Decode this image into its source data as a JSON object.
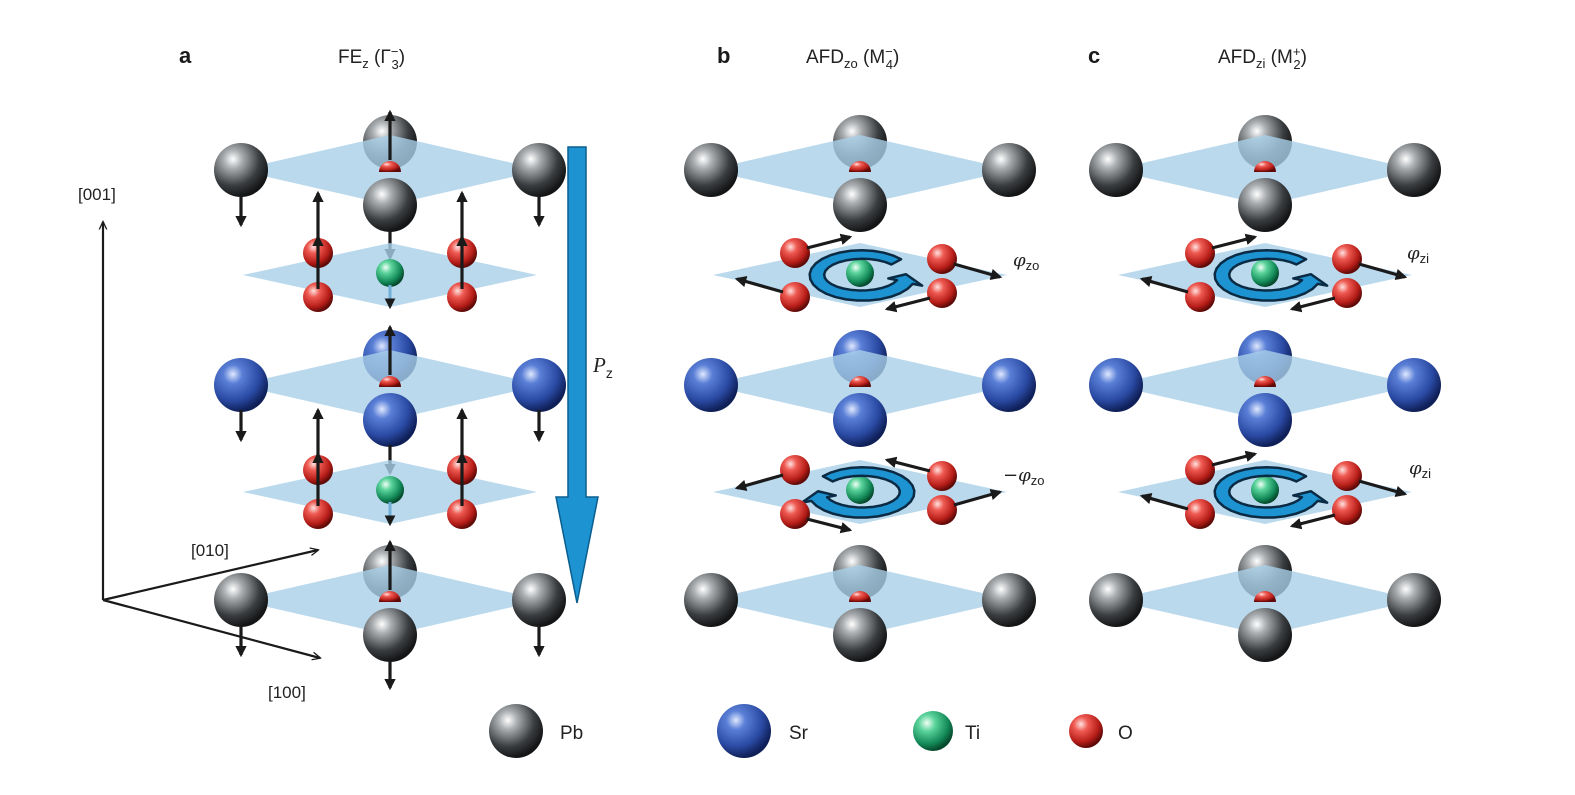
{
  "panels": [
    {
      "letter": "a",
      "title_main": "FE",
      "title_sub": "z",
      "title_paren_open": " (Γ",
      "title_sup": "−",
      "title_sub2": "3",
      "title_paren_close": ")"
    },
    {
      "letter": "b",
      "title_main": "AFD",
      "title_sub": "zo",
      "title_paren_open": " (M",
      "title_sup": "−",
      "title_sub2": "4",
      "title_paren_close": ")"
    },
    {
      "letter": "c",
      "title_main": "AFD",
      "title_sub": "zi",
      "title_paren_open": " (M",
      "title_sup": "+",
      "title_sub2": "2",
      "title_paren_close": ")"
    }
  ],
  "axes": {
    "z": "[001]",
    "y": "[010]",
    "x": "[100]"
  },
  "polarization": {
    "symbol": "P",
    "sub": "z"
  },
  "rotation_labels": {
    "b_top": {
      "prefix": "",
      "symbol": "φ",
      "sub": "zo"
    },
    "b_bottom": {
      "prefix": "−",
      "symbol": "φ",
      "sub": "zo"
    },
    "c_top": {
      "prefix": "",
      "symbol": "φ",
      "sub": "zi"
    },
    "c_bottom": {
      "prefix": "",
      "symbol": "φ",
      "sub": "zi"
    }
  },
  "legend": [
    {
      "label": "Pb",
      "color": "#3a3d40"
    },
    {
      "label": "Sr",
      "color": "#2f4fa8"
    },
    {
      "label": "Ti",
      "color": "#1f9e6a"
    },
    {
      "label": "O",
      "color": "#cc2b24"
    }
  ],
  "colors": {
    "plane": "#a9cfe8",
    "arrow": "#1a1a1a",
    "polar_arrow": "#1d93d1"
  }
}
